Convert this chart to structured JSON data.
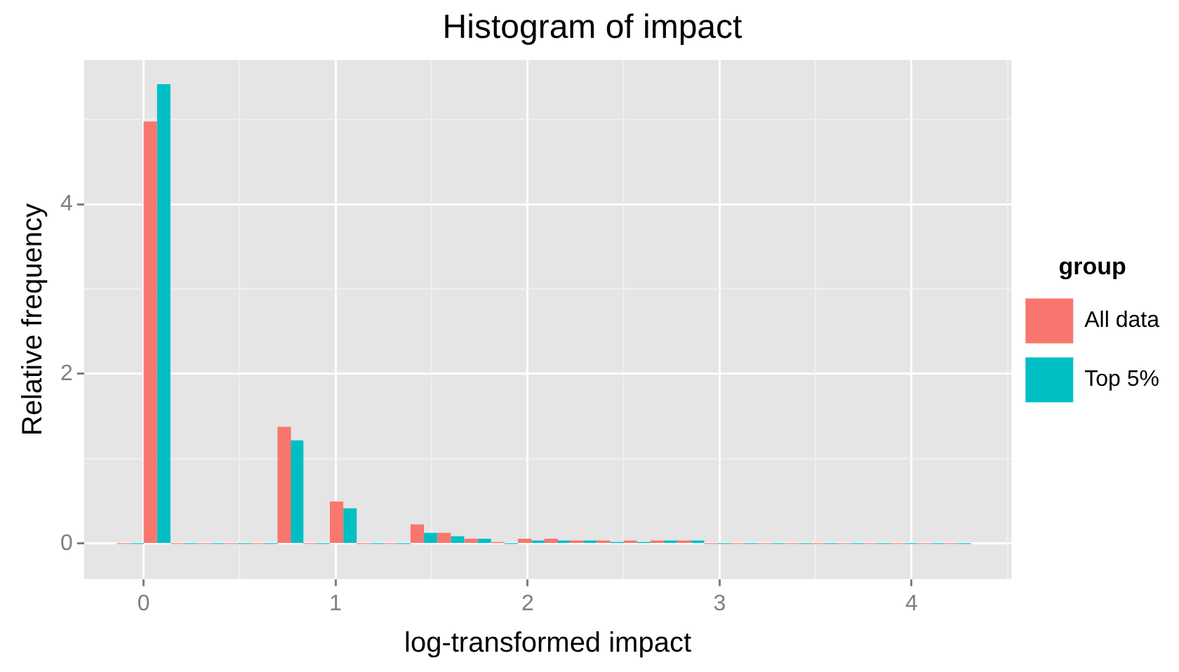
{
  "chart_data": {
    "type": "histogram",
    "title": "Histogram of impact",
    "xlabel": "log-transformed impact",
    "ylabel": "Relative frequency",
    "legend_title": "group",
    "legend": "right",
    "grid": true,
    "bins": [
      -0.14,
      0,
      0.14,
      0.28,
      0.42,
      0.56,
      0.7,
      0.83,
      0.97,
      1.11,
      1.25,
      1.39,
      1.53,
      1.67,
      1.81,
      1.95,
      2.09,
      2.22,
      2.36,
      2.5,
      2.64,
      2.78,
      2.92,
      3.06,
      3.2,
      3.34,
      3.48,
      3.61,
      3.75,
      3.89,
      4.03,
      4.17,
      4.31
    ],
    "series": [
      {
        "name": "All data",
        "color": "#f8766d",
        "values": [
          0,
          4.97,
          0,
          0,
          0,
          0,
          1.37,
          0,
          0.49,
          0,
          0,
          0.22,
          0.12,
          0.05,
          0.01,
          0.05,
          0.05,
          0.03,
          0.03,
          0.03,
          0.03,
          0.03,
          0,
          0,
          0,
          0,
          0,
          0,
          0,
          0,
          0,
          0
        ]
      },
      {
        "name": "Top 5%",
        "color": "#00bfc4",
        "values": [
          0,
          5.41,
          0,
          0,
          0,
          0,
          1.21,
          0,
          0.41,
          0,
          0,
          0.12,
          0.08,
          0.05,
          0,
          0.03,
          0.03,
          0.03,
          0.01,
          0.01,
          0.03,
          0.03,
          0,
          0,
          0,
          0,
          0,
          0,
          0,
          0,
          0,
          0
        ]
      }
    ],
    "xlim": [
      -0.31,
      4.52
    ],
    "xticks": [
      0,
      1,
      2,
      3,
      4
    ],
    "ylim": [
      -0.42,
      5.7
    ],
    "yticks": [
      0,
      2,
      4
    ]
  }
}
